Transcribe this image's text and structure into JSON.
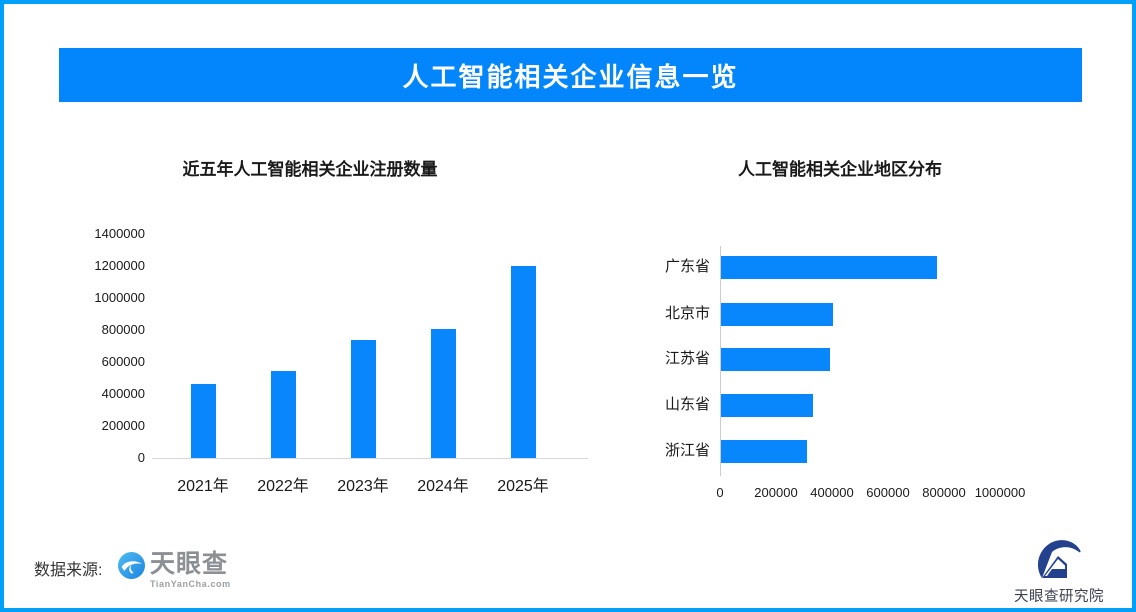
{
  "banner": {
    "title": "人工智能相关企业信息一览"
  },
  "colors": {
    "frame_border": "#02A0F9",
    "banner_bg": "#0386FB",
    "bar_fill": "#0886FB",
    "axis_line": "#cccccc",
    "logo_gray": "#8C8F94",
    "research_navy": "#24418E"
  },
  "footer": {
    "source_label": "数据来源:",
    "tianyancha_logo": {
      "name": "天眼查",
      "url_text": "TianYanCha.com"
    },
    "research_logo": {
      "text": "天眼查研究院"
    }
  },
  "chart_data": [
    {
      "type": "bar",
      "orientation": "vertical",
      "title": "近五年人工智能相关企业注册数量",
      "categories": [
        "2021年",
        "2022年",
        "2023年",
        "2024年",
        "2025年"
      ],
      "values": [
        460000,
        545000,
        735000,
        805000,
        1200000
      ],
      "yticks": [
        0,
        200000,
        400000,
        600000,
        800000,
        1000000,
        1200000,
        1400000
      ],
      "ylim": [
        0,
        1400000
      ],
      "grid": false,
      "legend": false
    },
    {
      "type": "bar",
      "orientation": "horizontal",
      "title": "人工智能相关企业地区分布",
      "categories": [
        "广东省",
        "北京市",
        "江苏省",
        "山东省",
        "浙江省"
      ],
      "values": [
        770000,
        400000,
        388000,
        330000,
        308000
      ],
      "xticks": [
        0,
        200000,
        400000,
        600000,
        800000,
        1000000
      ],
      "xlim": [
        0,
        1070000
      ],
      "grid": false,
      "legend": false
    }
  ]
}
